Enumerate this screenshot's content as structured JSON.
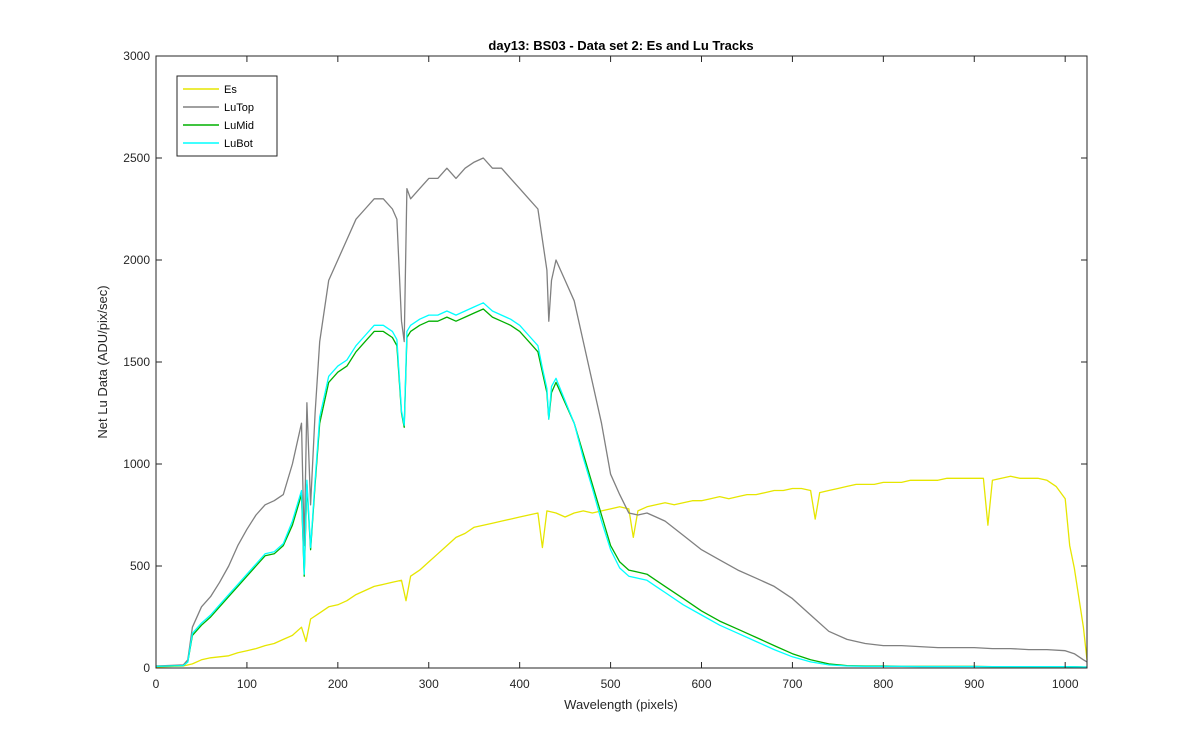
{
  "chart_data": {
    "type": "line",
    "title": "day13: BS03 - Data set 2: Es and Lu Tracks",
    "xlabel": "Wavelength (pixels)",
    "ylabel": "Net Lu Data (ADU/pix/sec)",
    "xlim": [
      0,
      1024
    ],
    "ylim": [
      0,
      3000
    ],
    "xticks": [
      0,
      100,
      200,
      300,
      400,
      500,
      600,
      700,
      800,
      900,
      1000
    ],
    "yticks": [
      0,
      500,
      1000,
      1500,
      2000,
      2500,
      3000
    ],
    "grid": false,
    "legend_position": "top-left",
    "series": [
      {
        "name": "Es",
        "color": "#e6e600",
        "x": [
          0,
          30,
          40,
          50,
          60,
          70,
          80,
          90,
          100,
          110,
          120,
          130,
          140,
          150,
          160,
          165,
          170,
          180,
          190,
          200,
          210,
          220,
          230,
          240,
          250,
          260,
          270,
          275,
          280,
          290,
          300,
          310,
          320,
          330,
          340,
          350,
          360,
          370,
          380,
          390,
          400,
          410,
          420,
          425,
          430,
          440,
          450,
          460,
          470,
          480,
          490,
          500,
          510,
          520,
          525,
          530,
          540,
          550,
          560,
          570,
          580,
          590,
          600,
          610,
          620,
          630,
          640,
          650,
          660,
          670,
          680,
          690,
          700,
          710,
          720,
          725,
          730,
          740,
          750,
          760,
          770,
          780,
          790,
          800,
          810,
          820,
          830,
          840,
          850,
          860,
          870,
          880,
          890,
          900,
          910,
          915,
          920,
          930,
          940,
          950,
          960,
          970,
          980,
          990,
          1000,
          1005,
          1010,
          1020,
          1024
        ],
        "values": [
          5,
          10,
          20,
          40,
          50,
          55,
          60,
          75,
          85,
          95,
          110,
          120,
          140,
          160,
          200,
          130,
          240,
          270,
          300,
          310,
          330,
          360,
          380,
          400,
          410,
          420,
          430,
          330,
          450,
          480,
          520,
          560,
          600,
          640,
          660,
          690,
          700,
          710,
          720,
          730,
          740,
          750,
          760,
          590,
          770,
          760,
          740,
          760,
          770,
          760,
          770,
          780,
          790,
          780,
          640,
          770,
          790,
          800,
          810,
          800,
          810,
          820,
          820,
          830,
          840,
          830,
          840,
          850,
          850,
          860,
          870,
          870,
          880,
          880,
          870,
          730,
          860,
          870,
          880,
          890,
          900,
          900,
          900,
          910,
          910,
          910,
          920,
          920,
          920,
          920,
          930,
          930,
          930,
          930,
          930,
          700,
          920,
          930,
          940,
          930,
          930,
          930,
          920,
          890,
          830,
          600,
          490,
          200,
          40
        ]
      },
      {
        "name": "LuTop",
        "color": "#808080",
        "x": [
          0,
          30,
          35,
          40,
          50,
          60,
          70,
          80,
          90,
          100,
          110,
          120,
          130,
          140,
          150,
          160,
          163,
          166,
          170,
          175,
          180,
          190,
          200,
          210,
          220,
          230,
          240,
          250,
          260,
          265,
          270,
          273,
          276,
          280,
          290,
          300,
          310,
          320,
          330,
          340,
          350,
          360,
          370,
          380,
          390,
          400,
          410,
          420,
          425,
          430,
          432,
          435,
          440,
          450,
          460,
          470,
          480,
          490,
          500,
          510,
          520,
          530,
          540,
          550,
          560,
          580,
          600,
          620,
          640,
          660,
          680,
          700,
          720,
          740,
          760,
          780,
          800,
          820,
          840,
          860,
          880,
          900,
          920,
          940,
          960,
          980,
          1000,
          1010,
          1020,
          1024
        ],
        "values": [
          10,
          15,
          40,
          200,
          300,
          350,
          420,
          500,
          600,
          680,
          750,
          800,
          820,
          850,
          1000,
          1200,
          600,
          1300,
          800,
          1250,
          1600,
          1900,
          2000,
          2100,
          2200,
          2250,
          2300,
          2300,
          2250,
          2200,
          1700,
          1600,
          2350,
          2300,
          2350,
          2400,
          2400,
          2450,
          2400,
          2450,
          2480,
          2500,
          2450,
          2450,
          2400,
          2350,
          2300,
          2250,
          2100,
          1950,
          1700,
          1900,
          2000,
          1900,
          1800,
          1600,
          1400,
          1200,
          950,
          850,
          760,
          750,
          760,
          740,
          720,
          650,
          580,
          530,
          480,
          440,
          400,
          340,
          260,
          180,
          140,
          120,
          110,
          110,
          105,
          100,
          100,
          100,
          95,
          95,
          90,
          90,
          85,
          70,
          40,
          30
        ]
      },
      {
        "name": "LuMid",
        "color": "#00b000",
        "x": [
          0,
          30,
          35,
          40,
          50,
          60,
          70,
          80,
          90,
          100,
          110,
          120,
          130,
          140,
          150,
          160,
          163,
          166,
          170,
          175,
          180,
          190,
          200,
          210,
          220,
          230,
          240,
          250,
          260,
          265,
          270,
          273,
          276,
          280,
          290,
          300,
          310,
          320,
          330,
          340,
          350,
          360,
          370,
          380,
          390,
          400,
          410,
          420,
          425,
          430,
          432,
          435,
          440,
          450,
          460,
          470,
          480,
          490,
          500,
          510,
          520,
          530,
          540,
          550,
          560,
          580,
          600,
          620,
          640,
          660,
          680,
          700,
          720,
          740,
          760,
          780,
          800,
          820,
          840,
          860,
          880,
          900,
          920,
          940,
          960,
          980,
          1000,
          1010,
          1020,
          1024
        ],
        "values": [
          8,
          12,
          30,
          160,
          210,
          250,
          300,
          350,
          400,
          450,
          500,
          550,
          560,
          600,
          700,
          850,
          450,
          900,
          580,
          900,
          1200,
          1400,
          1450,
          1480,
          1550,
          1600,
          1650,
          1650,
          1620,
          1580,
          1250,
          1180,
          1620,
          1650,
          1680,
          1700,
          1700,
          1720,
          1700,
          1720,
          1740,
          1760,
          1720,
          1700,
          1680,
          1650,
          1600,
          1550,
          1450,
          1350,
          1220,
          1350,
          1400,
          1300,
          1200,
          1050,
          900,
          750,
          600,
          520,
          480,
          470,
          460,
          430,
          400,
          340,
          280,
          230,
          190,
          150,
          110,
          70,
          40,
          20,
          12,
          10,
          10,
          8,
          8,
          8,
          8,
          8,
          7,
          7,
          7,
          7,
          7,
          6,
          5,
          5
        ]
      },
      {
        "name": "LuBot",
        "color": "#00ffff",
        "x": [
          0,
          30,
          35,
          40,
          50,
          60,
          70,
          80,
          90,
          100,
          110,
          120,
          130,
          140,
          150,
          160,
          163,
          166,
          170,
          175,
          180,
          190,
          200,
          210,
          220,
          230,
          240,
          250,
          260,
          265,
          270,
          273,
          276,
          280,
          290,
          300,
          310,
          320,
          330,
          340,
          350,
          360,
          370,
          380,
          390,
          400,
          410,
          420,
          425,
          430,
          432,
          435,
          440,
          450,
          460,
          470,
          480,
          490,
          500,
          510,
          520,
          530,
          540,
          550,
          560,
          580,
          600,
          620,
          640,
          660,
          680,
          700,
          720,
          740,
          760,
          780,
          800,
          820,
          840,
          860,
          880,
          900,
          920,
          940,
          960,
          980,
          1000,
          1010,
          1020,
          1024
        ],
        "values": [
          8,
          12,
          30,
          170,
          220,
          260,
          310,
          360,
          410,
          460,
          510,
          560,
          570,
          610,
          720,
          870,
          460,
          920,
          590,
          920,
          1230,
          1430,
          1480,
          1510,
          1580,
          1630,
          1680,
          1680,
          1650,
          1610,
          1260,
          1190,
          1650,
          1680,
          1710,
          1730,
          1730,
          1750,
          1730,
          1750,
          1770,
          1790,
          1750,
          1730,
          1710,
          1680,
          1630,
          1580,
          1470,
          1370,
          1220,
          1380,
          1420,
          1310,
          1200,
          1030,
          880,
          720,
          580,
          490,
          450,
          440,
          430,
          400,
          370,
          310,
          260,
          210,
          170,
          130,
          90,
          55,
          30,
          15,
          10,
          8,
          8,
          8,
          7,
          7,
          7,
          7,
          7,
          7,
          7,
          7,
          7,
          6,
          5,
          5
        ]
      }
    ]
  }
}
